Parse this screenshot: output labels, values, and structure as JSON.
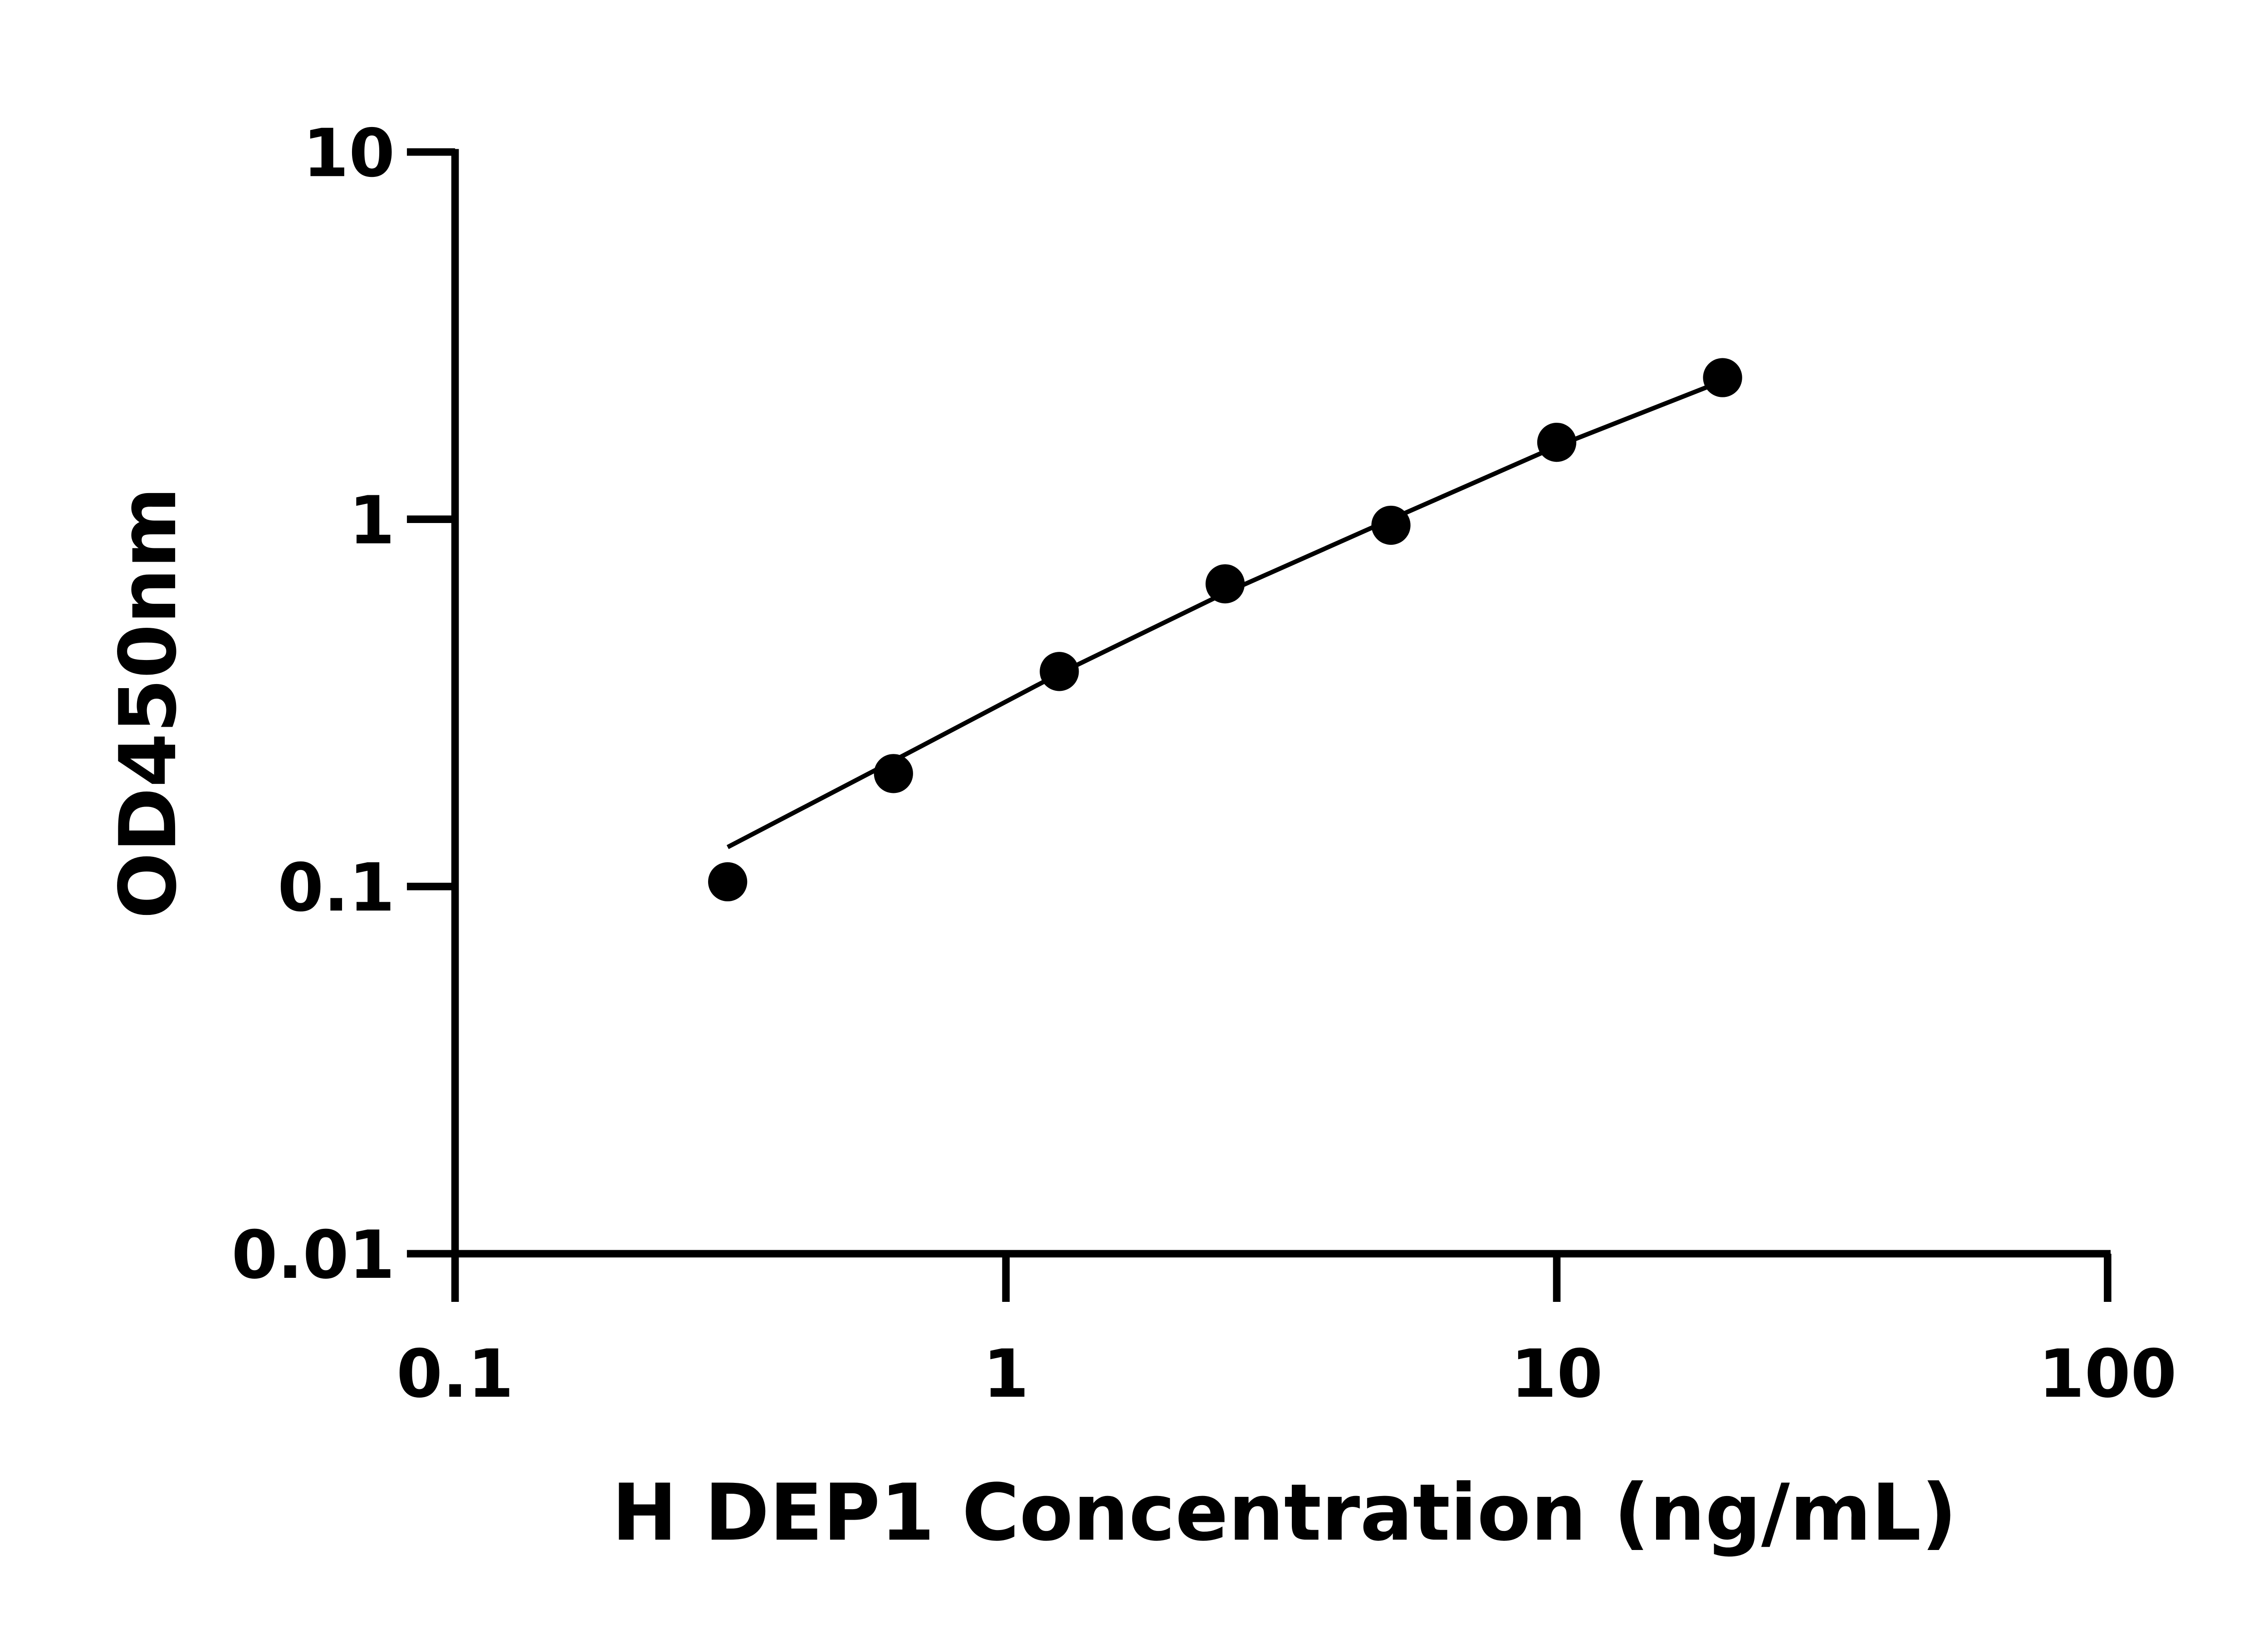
{
  "chart_data": {
    "type": "scatter",
    "title": "",
    "xlabel": "H DEP1 Concentration (ng/mL)",
    "ylabel": "OD450nm",
    "xscale": "log",
    "yscale": "log",
    "xlim": [
      0.1,
      100
    ],
    "ylim": [
      0.01,
      10
    ],
    "xticks": [
      "0.1",
      "1",
      "10",
      "100"
    ],
    "yticks": [
      "0.01",
      "0.1",
      "1",
      "10"
    ],
    "grid": false,
    "legend": "none",
    "color": "#000000",
    "series": [
      {
        "x": [
          0.3125,
          0.625,
          1.25,
          2.5,
          5,
          10,
          20
        ],
        "y": [
          0.103,
          0.203,
          0.385,
          0.667,
          0.963,
          1.62,
          2.43
        ]
      }
    ],
    "fit_curve": {
      "x": [
        0.3125,
        0.625,
        1.25,
        2.5,
        5,
        10,
        20
      ],
      "y": [
        0.128,
        0.22,
        0.38,
        0.63,
        1.0,
        1.58,
        2.38
      ]
    }
  }
}
